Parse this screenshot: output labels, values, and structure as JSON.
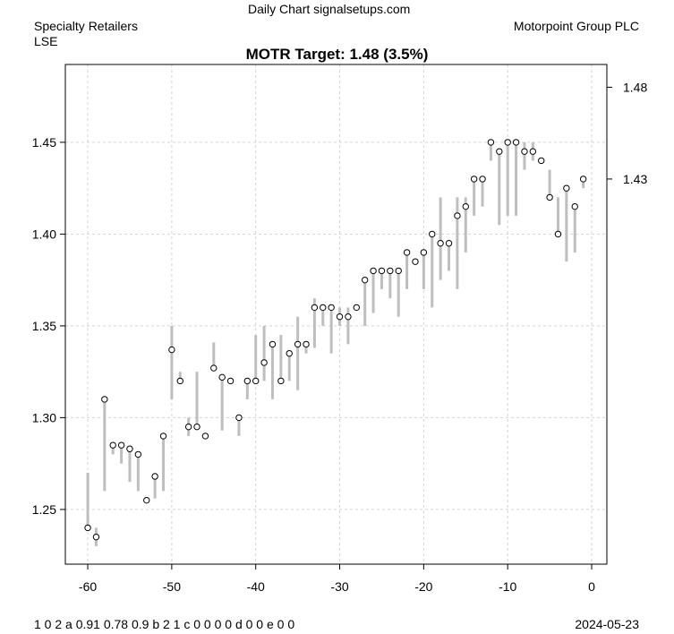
{
  "header": {
    "source": "Daily Chart signalsetups.com",
    "sector": "Specialty Retailers",
    "exchange": "LSE",
    "company": "Motorpoint Group PLC",
    "footer_codes": "1 0 2 a 0.91 0.78 0.9 b 2 1 c 0 0 0 0 d 0 0 e 0 0",
    "date": "2024-05-23"
  },
  "chart_data": {
    "type": "line",
    "title": "MOTR Target: 1.48 (3.5%)",
    "xlabel": "",
    "ylabel": "",
    "xlim": [
      -62.67,
      1.81
    ],
    "ylim": [
      1.2202,
      1.4924
    ],
    "x_ticks": [
      "-60",
      "-50",
      "-40",
      "-30",
      "-20",
      "-10",
      "0"
    ],
    "y_ticks": [
      "1.25",
      "1.30",
      "1.35",
      "1.40",
      "1.45"
    ],
    "right_ticks": [
      "1.48",
      "1.43"
    ],
    "grid": true,
    "colors": {
      "bar": "#bebebe",
      "point": "#000000",
      "grid": "#d3d3d3"
    },
    "x": [
      -60,
      -59,
      -58,
      -57,
      -56,
      -55,
      -54,
      -53,
      -52,
      -51,
      -50,
      -49,
      -48,
      -47,
      -46,
      -45,
      -44,
      -43,
      -42,
      -41,
      -40,
      -39,
      -38,
      -37,
      -36,
      -35,
      -34,
      -33,
      -32,
      -31,
      -30,
      -29,
      -28,
      -27,
      -26,
      -25,
      -24,
      -23,
      -22,
      -21,
      -20,
      -19,
      -18,
      -17,
      -16,
      -15,
      -14,
      -13,
      -12,
      -11,
      -10,
      -9,
      -8,
      -7,
      -6,
      -5,
      -4,
      -3,
      -2,
      -1
    ],
    "close": [
      1.24,
      1.235,
      1.31,
      1.285,
      1.285,
      1.283,
      1.28,
      1.255,
      1.268,
      1.29,
      1.337,
      1.32,
      1.295,
      1.295,
      1.29,
      1.327,
      1.322,
      1.32,
      1.3,
      1.32,
      1.32,
      1.33,
      1.34,
      1.32,
      1.335,
      1.34,
      1.34,
      1.36,
      1.36,
      1.36,
      1.355,
      1.355,
      1.36,
      1.375,
      1.38,
      1.38,
      1.38,
      1.38,
      1.39,
      1.385,
      1.39,
      1.4,
      1.395,
      1.395,
      1.41,
      1.415,
      1.43,
      1.43,
      1.45,
      1.445,
      1.45,
      1.45,
      1.445,
      1.445,
      1.44,
      1.42,
      1.4,
      1.425,
      1.415,
      1.43
    ],
    "low": [
      1.24,
      1.23,
      1.26,
      1.28,
      1.275,
      1.265,
      1.26,
      1.255,
      1.256,
      1.26,
      1.31,
      1.32,
      1.29,
      1.295,
      1.29,
      1.327,
      1.293,
      1.32,
      1.29,
      1.31,
      1.32,
      1.32,
      1.31,
      1.32,
      1.32,
      1.315,
      1.335,
      1.338,
      1.35,
      1.335,
      1.35,
      1.34,
      1.36,
      1.35,
      1.357,
      1.37,
      1.365,
      1.355,
      1.37,
      1.385,
      1.37,
      1.36,
      1.375,
      1.38,
      1.37,
      1.39,
      1.41,
      1.415,
      1.44,
      1.405,
      1.41,
      1.41,
      1.435,
      1.44,
      1.44,
      1.42,
      1.4,
      1.385,
      1.39,
      1.425
    ],
    "high": [
      1.27,
      1.24,
      1.31,
      1.285,
      1.285,
      1.283,
      1.28,
      1.255,
      1.268,
      1.29,
      1.35,
      1.325,
      1.3,
      1.325,
      1.29,
      1.341,
      1.322,
      1.32,
      1.3,
      1.32,
      1.345,
      1.35,
      1.34,
      1.345,
      1.335,
      1.355,
      1.34,
      1.365,
      1.36,
      1.36,
      1.36,
      1.36,
      1.36,
      1.375,
      1.38,
      1.38,
      1.38,
      1.38,
      1.39,
      1.385,
      1.39,
      1.4,
      1.42,
      1.395,
      1.42,
      1.42,
      1.43,
      1.43,
      1.45,
      1.445,
      1.45,
      1.45,
      1.45,
      1.45,
      1.44,
      1.435,
      1.42,
      1.425,
      1.415,
      1.43
    ]
  }
}
